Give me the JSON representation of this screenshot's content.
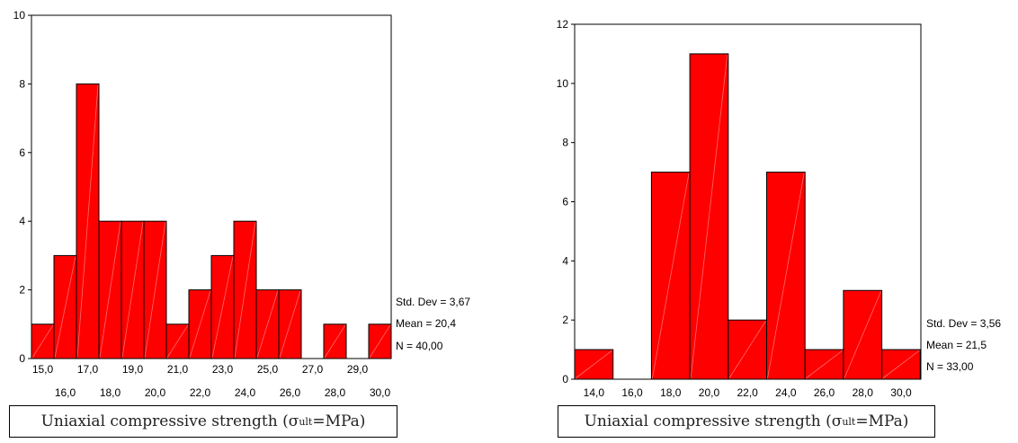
{
  "chart_data": [
    {
      "type": "bar",
      "categories": [
        "15,0",
        "16,0",
        "17,0",
        "18,0",
        "19,0",
        "20,0",
        "21,0",
        "22,0",
        "23,0",
        "24,0",
        "25,0",
        "26,0",
        "27,0",
        "28,0",
        "29,0",
        "30,0"
      ],
      "values": [
        1,
        3,
        8,
        4,
        4,
        4,
        1,
        2,
        3,
        4,
        2,
        2,
        0,
        1,
        0,
        1
      ],
      "ylim": [
        0,
        10
      ],
      "yticks": [
        "0",
        "2",
        "4",
        "6",
        "8",
        "10"
      ],
      "bar_color": "#ff0000",
      "stats": {
        "std_dev": "Std. Dev = 3,67",
        "mean": "Mean = 20,4",
        "n": "N = 40,00"
      },
      "xlabel_prefix": "Uniaxial compressive strength (σ",
      "xlabel_sub": "ult",
      "xlabel_suffix": " =MPa)"
    },
    {
      "type": "bar",
      "categories": [
        "14,0",
        "16,0",
        "18,0",
        "20,0",
        "22,0",
        "24,0",
        "26,0",
        "28,0",
        "30,0"
      ],
      "values": [
        1,
        0,
        7,
        11,
        2,
        7,
        1,
        3,
        1
      ],
      "ylim": [
        0,
        12
      ],
      "yticks": [
        "0",
        "2",
        "4",
        "6",
        "8",
        "10",
        "12"
      ],
      "bar_color": "#ff0000",
      "stats": {
        "std_dev": "Std. Dev = 3,56",
        "mean": "Mean = 21,5",
        "n": "N = 33,00"
      },
      "xlabel_prefix": "Uniaxial compressive strength (σ",
      "xlabel_sub": "ult",
      "xlabel_suffix": " =MPa)"
    }
  ]
}
